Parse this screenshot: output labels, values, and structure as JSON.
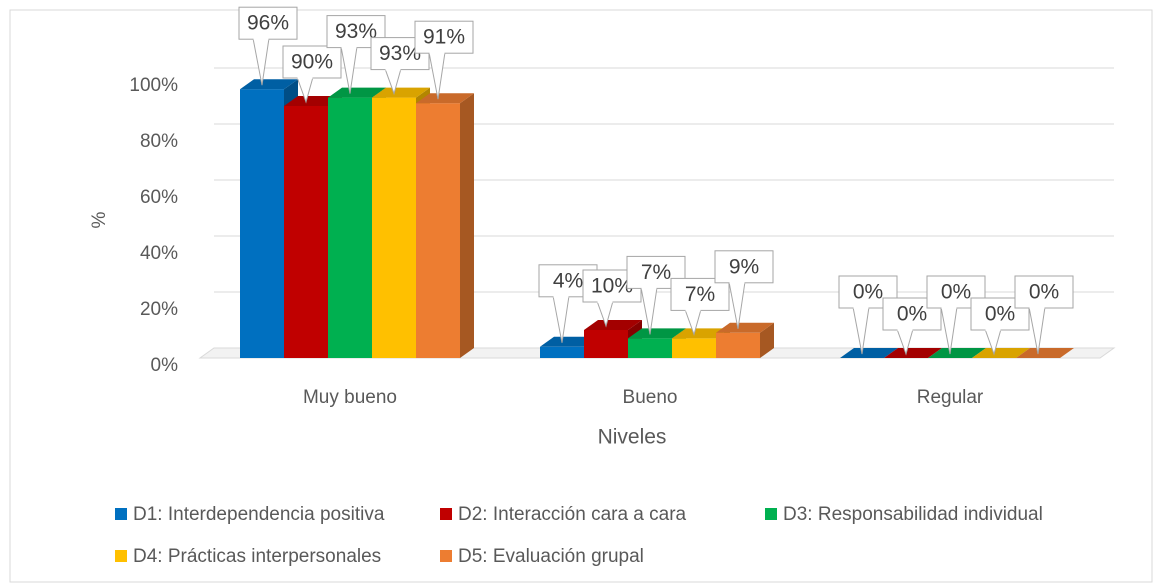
{
  "chart_data": {
    "type": "bar",
    "x_label": "Niveles",
    "y_label": "%",
    "categories": [
      "Muy bueno",
      "Bueno",
      "Regular"
    ],
    "series": [
      {
        "name": "D1: Interdependencia positiva",
        "color": "#0070c0",
        "values": [
          96,
          4,
          0
        ],
        "value_labels": [
          "96%",
          "4%",
          "0%"
        ]
      },
      {
        "name": "D2: Interacción cara a cara",
        "color": "#c00000",
        "values": [
          90,
          10,
          0
        ],
        "value_labels": [
          "90%",
          "10%",
          "0%"
        ]
      },
      {
        "name": "D3: Responsabilidad individual",
        "color": "#00b050",
        "values": [
          93,
          7,
          0
        ],
        "value_labels": [
          "93%",
          "7%",
          "0%"
        ]
      },
      {
        "name": "D4: Prácticas  interpersonales",
        "color": "#ffc000",
        "values": [
          93,
          7,
          0
        ],
        "value_labels": [
          "93%",
          "7%",
          "0%"
        ]
      },
      {
        "name": "D5: Evaluación grupal",
        "color": "#ed7d31",
        "values": [
          91,
          9,
          0
        ],
        "value_labels": [
          "91%",
          "9%",
          "0%"
        ]
      }
    ],
    "ylim": [
      0,
      100
    ],
    "yticks": [
      {
        "value": 0,
        "label": "0%"
      },
      {
        "value": 20,
        "label": "20%"
      },
      {
        "value": 40,
        "label": "40%"
      },
      {
        "value": 60,
        "label": "60%"
      },
      {
        "value": 80,
        "label": "80%"
      },
      {
        "value": 100,
        "label": "100%"
      }
    ],
    "grid": true,
    "legend": "bottom"
  }
}
